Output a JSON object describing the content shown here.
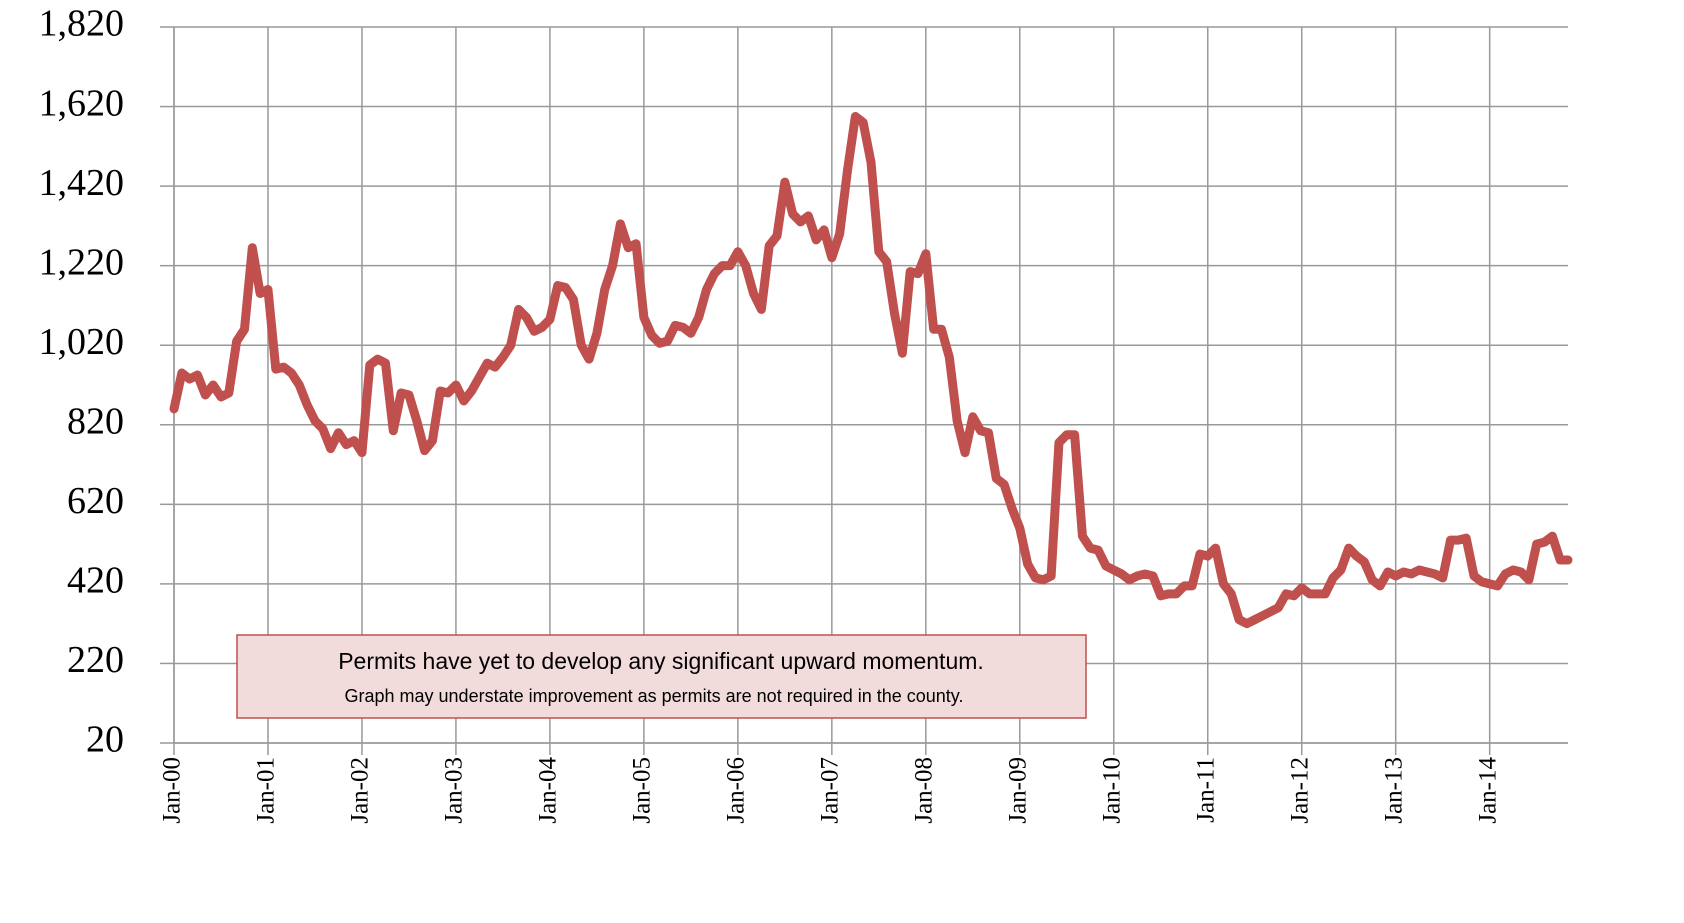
{
  "chart_data": {
    "type": "line",
    "categories": [
      "Jan-00",
      null,
      null,
      null,
      null,
      null,
      null,
      null,
      null,
      null,
      null,
      null,
      "Jan-01",
      null,
      null,
      null,
      null,
      null,
      null,
      null,
      null,
      null,
      null,
      null,
      "Jan-02",
      null,
      null,
      null,
      null,
      null,
      null,
      null,
      null,
      null,
      null,
      null,
      "Jan-03",
      null,
      null,
      null,
      null,
      null,
      null,
      null,
      null,
      null,
      null,
      null,
      "Jan-04",
      null,
      null,
      null,
      null,
      null,
      null,
      null,
      null,
      null,
      null,
      null,
      "Jan-05",
      null,
      null,
      null,
      null,
      null,
      null,
      null,
      null,
      null,
      null,
      null,
      "Jan-06",
      null,
      null,
      null,
      null,
      null,
      null,
      null,
      null,
      null,
      null,
      null,
      "Jan-07",
      null,
      null,
      null,
      null,
      null,
      null,
      null,
      null,
      null,
      null,
      null,
      "Jan-08",
      null,
      null,
      null,
      null,
      null,
      null,
      null,
      null,
      null,
      null,
      null,
      "Jan-09",
      null,
      null,
      null,
      null,
      null,
      null,
      null,
      null,
      null,
      null,
      null,
      "Jan-10",
      null,
      null,
      null,
      null,
      null,
      null,
      null,
      null,
      null,
      null,
      null,
      "Jan-11",
      null,
      null,
      null,
      null,
      null,
      null,
      null,
      null,
      null,
      null,
      null,
      "Jan-12",
      null,
      null,
      null,
      null,
      null,
      null,
      null,
      null,
      null,
      null,
      null,
      "Jan-13",
      null,
      null,
      null,
      null,
      null,
      null,
      null,
      null,
      null,
      null,
      null,
      "Jan-14",
      null,
      null,
      null,
      null,
      null,
      null,
      null,
      null,
      null,
      null
    ],
    "values": [
      860,
      950,
      935,
      945,
      895,
      920,
      890,
      900,
      1030,
      1060,
      1265,
      1150,
      1160,
      960,
      965,
      950,
      920,
      870,
      830,
      810,
      760,
      800,
      770,
      780,
      750,
      970,
      985,
      975,
      805,
      900,
      895,
      830,
      755,
      780,
      905,
      900,
      920,
      880,
      905,
      940,
      975,
      965,
      990,
      1020,
      1110,
      1090,
      1055,
      1065,
      1085,
      1170,
      1165,
      1135,
      1020,
      985,
      1050,
      1160,
      1220,
      1325,
      1265,
      1275,
      1090,
      1045,
      1025,
      1030,
      1070,
      1065,
      1050,
      1090,
      1160,
      1200,
      1220,
      1220,
      1255,
      1220,
      1150,
      1110,
      1270,
      1295,
      1430,
      1350,
      1330,
      1345,
      1285,
      1310,
      1240,
      1300,
      1460,
      1595,
      1580,
      1480,
      1255,
      1230,
      1100,
      1000,
      1205,
      1200,
      1250,
      1060,
      1060,
      990,
      830,
      750,
      840,
      805,
      800,
      685,
      670,
      610,
      560,
      470,
      435,
      430,
      440,
      775,
      795,
      795,
      540,
      510,
      505,
      465,
      455,
      445,
      430,
      440,
      445,
      440,
      390,
      395,
      395,
      415,
      415,
      495,
      490,
      510,
      420,
      395,
      330,
      320,
      330,
      340,
      350,
      360,
      395,
      390,
      410,
      395,
      395,
      395,
      435,
      455,
      510,
      490,
      475,
      430,
      415,
      450,
      440,
      450,
      445,
      455,
      450,
      445,
      435,
      530,
      530,
      535,
      440,
      425,
      420,
      415,
      445,
      455,
      450,
      430,
      520,
      525,
      540,
      480,
      480
    ],
    "color": "#c0504d",
    "ylim": [
      20,
      1820
    ],
    "yticks": [
      20,
      {
        "value": 220,
        "label": "220"
      },
      420,
      620,
      820,
      {
        "value": 1020,
        "label": "1,020"
      },
      {
        "value": 1220,
        "label": "1,220"
      },
      {
        "value": 1420,
        "label": "1,420"
      },
      {
        "value": 1620,
        "label": "1,620"
      },
      {
        "value": 1820,
        "label": "1,820"
      }
    ],
    "grid": true,
    "annotation": {
      "line1": "Permits have yet to develop any significant upward momentum.",
      "line2": "Graph may understate improvement as permits are not required in the county."
    }
  }
}
